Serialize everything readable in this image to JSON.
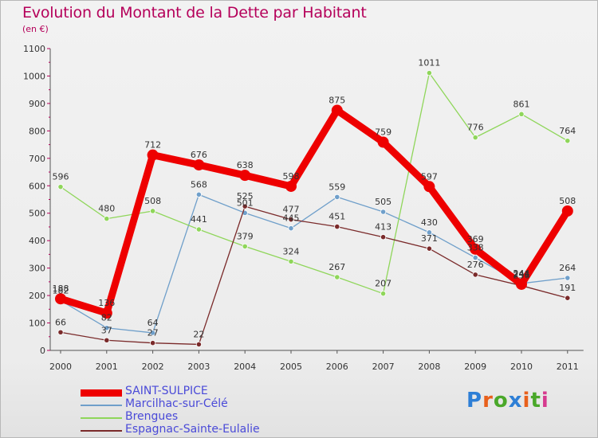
{
  "header": {
    "title": "Evolution du Montant de la Dette par Habitant",
    "subtitle": "(en €)"
  },
  "brand": {
    "name": "Proxiti",
    "letter_colors": [
      "#2e7fd6",
      "#e8601c",
      "#4aa82a",
      "#2e7fd6",
      "#e8601c",
      "#4aa82a",
      "#d63a8e"
    ]
  },
  "chart_data": {
    "type": "line",
    "title": "Evolution du Montant de la Dette par Habitant",
    "subtitle": "(en €)",
    "xlabel": "",
    "ylabel": "",
    "x": [
      "2000",
      "2001",
      "2002",
      "2003",
      "2004",
      "2005",
      "2006",
      "2007",
      "2008",
      "2009",
      "2010",
      "2011"
    ],
    "ylim": [
      0,
      1100
    ],
    "yticks": [
      0,
      100,
      200,
      300,
      400,
      500,
      600,
      700,
      800,
      900,
      1000,
      1100
    ],
    "grid": false,
    "legend": "bottom-left",
    "series": [
      {
        "name": "SAINT-SULPICE",
        "color": "#ee0000",
        "emphasis": true,
        "values": [
          188,
          136,
          712,
          676,
          638,
          598,
          875,
          759,
          597,
          369,
          241,
          508
        ]
      },
      {
        "name": "Marcilhac-sur-Célé",
        "color": "#6f9fca",
        "values": [
          182,
          82,
          64,
          568,
          501,
          445,
          559,
          505,
          430,
          338,
          244,
          264
        ]
      },
      {
        "name": "Brengues",
        "color": "#8fd65a",
        "values": [
          596,
          480,
          508,
          441,
          379,
          324,
          267,
          207,
          1011,
          776,
          861,
          764
        ]
      },
      {
        "name": "Espagnac-Sainte-Eulalie",
        "color": "#7a2a2a",
        "values": [
          66,
          37,
          27,
          22,
          525,
          477,
          451,
          413,
          371,
          276,
          236,
          191
        ]
      }
    ]
  }
}
